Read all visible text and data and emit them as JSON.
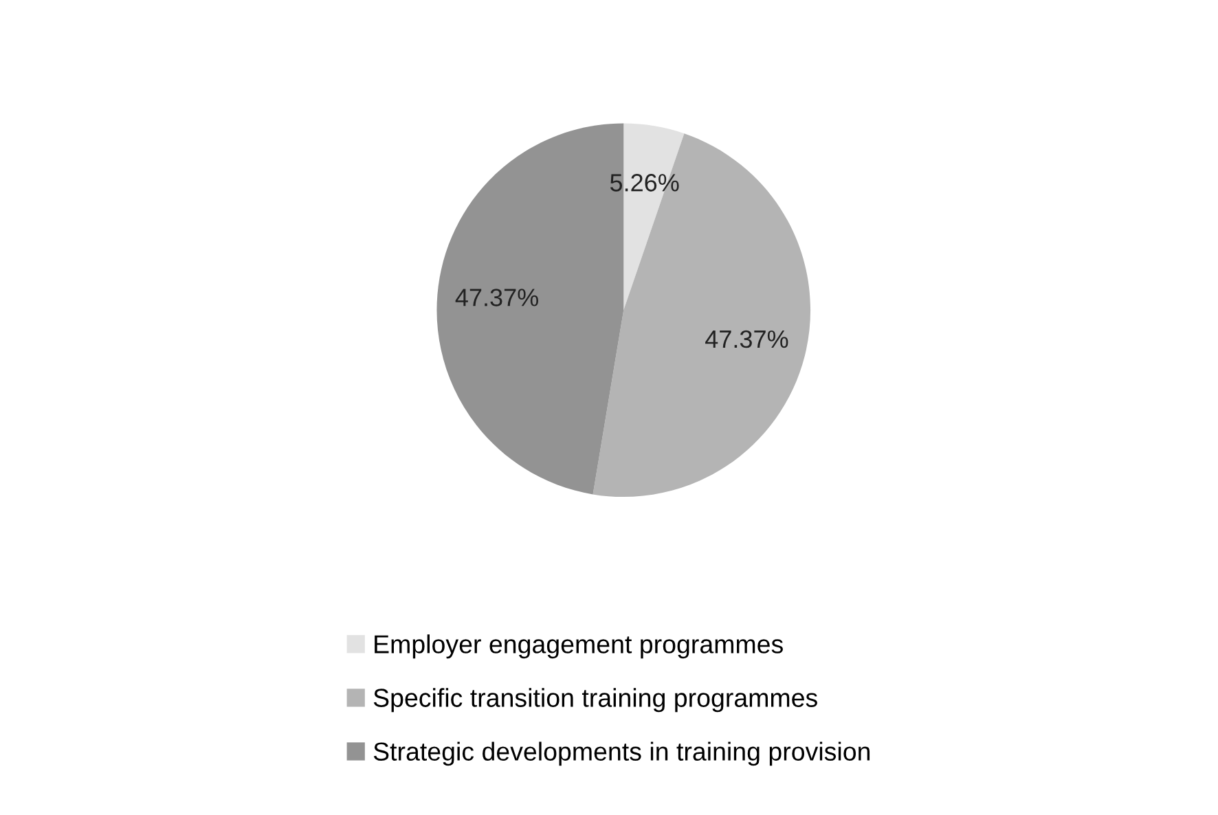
{
  "chart_data": {
    "type": "pie",
    "categories": [
      "Employer engagement programmes",
      "Specific transition training programmes",
      "Strategic developments in training provision"
    ],
    "values": [
      5.26,
      47.37,
      47.37
    ],
    "colors": [
      "#e2e2e2",
      "#b4b4b4",
      "#939393"
    ],
    "value_labels": [
      "5.26%",
      "47.37%",
      "47.37%"
    ],
    "legend": "bottom"
  }
}
